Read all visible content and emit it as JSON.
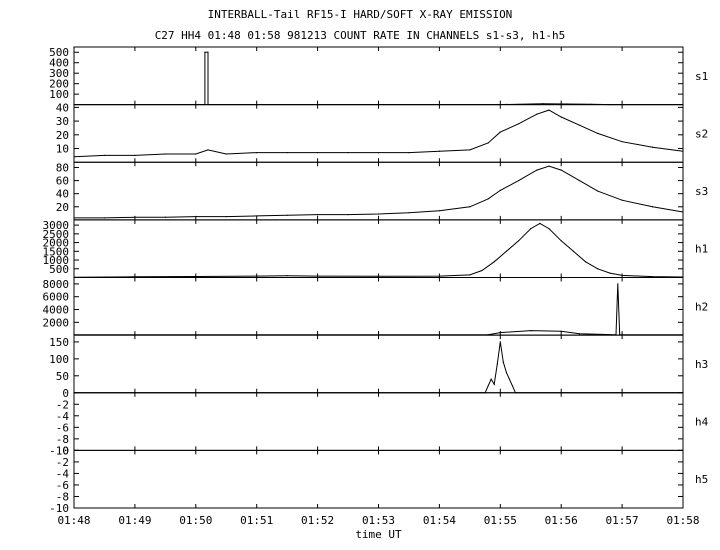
{
  "header": {
    "title": "INTERBALL-Tail RF15-I HARD/SOFT X-RAY EMISSION",
    "subtitle": "C27 HH4 01:48 01:58 981213  COUNT RATE IN CHANNELS s1-s3, h1-h5"
  },
  "chart_data": {
    "type": "line",
    "title": "INTERBALL-Tail RF15-I HARD/SOFT X-RAY EMISSION",
    "subtitle": "C27 HH4 01:48 01:58 981213  COUNT RATE IN CHANNELS s1-s3, h1-h5",
    "xlabel": "time UT",
    "x_range_minutes": [
      108,
      118
    ],
    "x_ticks": [
      "01:48",
      "01:49",
      "01:50",
      "01:51",
      "01:52",
      "01:53",
      "01:54",
      "01:55",
      "01:56",
      "01:57",
      "01:58"
    ],
    "panels": [
      {
        "name": "s1",
        "ylim": [
          0,
          550
        ],
        "yticks": [
          100,
          200,
          300,
          400,
          500
        ],
        "series": [
          {
            "x": 108.0,
            "y": 0
          },
          {
            "x": 110.15,
            "y": 0
          },
          {
            "x": 110.15,
            "y": 500
          },
          {
            "x": 110.2,
            "y": 500
          },
          {
            "x": 110.2,
            "y": 0
          },
          {
            "x": 114.95,
            "y": 0
          },
          {
            "x": 115.3,
            "y": 3
          },
          {
            "x": 115.7,
            "y": 8
          },
          {
            "x": 116.1,
            "y": 6
          },
          {
            "x": 116.5,
            "y": 3
          },
          {
            "x": 116.8,
            "y": 0
          },
          {
            "x": 118.0,
            "y": 0
          }
        ]
      },
      {
        "name": "s2",
        "ylim": [
          0,
          42
        ],
        "yticks": [
          10,
          20,
          30,
          40
        ],
        "series": [
          {
            "x": 108.0,
            "y": 4
          },
          {
            "x": 108.5,
            "y": 5
          },
          {
            "x": 109.0,
            "y": 5
          },
          {
            "x": 109.5,
            "y": 6
          },
          {
            "x": 110.0,
            "y": 6
          },
          {
            "x": 110.2,
            "y": 9
          },
          {
            "x": 110.5,
            "y": 6
          },
          {
            "x": 111.0,
            "y": 7
          },
          {
            "x": 111.5,
            "y": 7
          },
          {
            "x": 112.0,
            "y": 7
          },
          {
            "x": 112.5,
            "y": 7
          },
          {
            "x": 113.0,
            "y": 7
          },
          {
            "x": 113.5,
            "y": 7
          },
          {
            "x": 114.0,
            "y": 8
          },
          {
            "x": 114.5,
            "y": 9
          },
          {
            "x": 114.8,
            "y": 14
          },
          {
            "x": 115.0,
            "y": 22
          },
          {
            "x": 115.3,
            "y": 28
          },
          {
            "x": 115.6,
            "y": 35
          },
          {
            "x": 115.8,
            "y": 38
          },
          {
            "x": 116.0,
            "y": 33
          },
          {
            "x": 116.3,
            "y": 27
          },
          {
            "x": 116.6,
            "y": 21
          },
          {
            "x": 117.0,
            "y": 15
          },
          {
            "x": 117.5,
            "y": 11
          },
          {
            "x": 118.0,
            "y": 8
          }
        ]
      },
      {
        "name": "s3",
        "ylim": [
          0,
          88
        ],
        "yticks": [
          20,
          40,
          60,
          80
        ],
        "series": [
          {
            "x": 108.0,
            "y": 3
          },
          {
            "x": 108.5,
            "y": 3
          },
          {
            "x": 109.0,
            "y": 4
          },
          {
            "x": 109.5,
            "y": 4
          },
          {
            "x": 110.0,
            "y": 5
          },
          {
            "x": 110.5,
            "y": 5
          },
          {
            "x": 111.0,
            "y": 6
          },
          {
            "x": 111.5,
            "y": 7
          },
          {
            "x": 112.0,
            "y": 8
          },
          {
            "x": 112.5,
            "y": 8
          },
          {
            "x": 113.0,
            "y": 9
          },
          {
            "x": 113.5,
            "y": 11
          },
          {
            "x": 114.0,
            "y": 14
          },
          {
            "x": 114.5,
            "y": 20
          },
          {
            "x": 114.8,
            "y": 32
          },
          {
            "x": 115.0,
            "y": 45
          },
          {
            "x": 115.3,
            "y": 60
          },
          {
            "x": 115.6,
            "y": 76
          },
          {
            "x": 115.8,
            "y": 82
          },
          {
            "x": 116.0,
            "y": 76
          },
          {
            "x": 116.3,
            "y": 60
          },
          {
            "x": 116.6,
            "y": 44
          },
          {
            "x": 117.0,
            "y": 30
          },
          {
            "x": 117.5,
            "y": 20
          },
          {
            "x": 118.0,
            "y": 12
          }
        ]
      },
      {
        "name": "h1",
        "ylim": [
          0,
          3300
        ],
        "yticks": [
          500,
          1000,
          1500,
          2000,
          2500,
          3000
        ],
        "series": [
          {
            "x": 108.0,
            "y": 20
          },
          {
            "x": 109.0,
            "y": 40
          },
          {
            "x": 110.0,
            "y": 60
          },
          {
            "x": 111.0,
            "y": 80
          },
          {
            "x": 111.5,
            "y": 100
          },
          {
            "x": 112.0,
            "y": 80
          },
          {
            "x": 113.0,
            "y": 70
          },
          {
            "x": 114.0,
            "y": 80
          },
          {
            "x": 114.5,
            "y": 150
          },
          {
            "x": 114.7,
            "y": 400
          },
          {
            "x": 114.9,
            "y": 900
          },
          {
            "x": 115.1,
            "y": 1500
          },
          {
            "x": 115.3,
            "y": 2100
          },
          {
            "x": 115.5,
            "y": 2800
          },
          {
            "x": 115.65,
            "y": 3100
          },
          {
            "x": 115.8,
            "y": 2800
          },
          {
            "x": 116.0,
            "y": 2100
          },
          {
            "x": 116.2,
            "y": 1500
          },
          {
            "x": 116.4,
            "y": 900
          },
          {
            "x": 116.6,
            "y": 500
          },
          {
            "x": 116.8,
            "y": 250
          },
          {
            "x": 117.0,
            "y": 120
          },
          {
            "x": 117.5,
            "y": 50
          },
          {
            "x": 118.0,
            "y": 30
          }
        ]
      },
      {
        "name": "h2",
        "ylim": [
          0,
          9000
        ],
        "yticks": [
          2000,
          4000,
          6000,
          8000
        ],
        "series": [
          {
            "x": 108.0,
            "y": 50
          },
          {
            "x": 114.8,
            "y": 60
          },
          {
            "x": 115.0,
            "y": 400
          },
          {
            "x": 115.5,
            "y": 700
          },
          {
            "x": 116.0,
            "y": 600
          },
          {
            "x": 116.3,
            "y": 200
          },
          {
            "x": 116.9,
            "y": 60
          },
          {
            "x": 116.93,
            "y": 8000
          },
          {
            "x": 116.96,
            "y": 60
          },
          {
            "x": 118.0,
            "y": 50
          }
        ]
      },
      {
        "name": "h3",
        "ylim": [
          0,
          170
        ],
        "yticks": [
          50,
          100,
          150
        ],
        "series": [
          {
            "x": 108.0,
            "y": 0
          },
          {
            "x": 114.75,
            "y": 0
          },
          {
            "x": 114.8,
            "y": 20
          },
          {
            "x": 114.85,
            "y": 40
          },
          {
            "x": 114.9,
            "y": 25
          },
          {
            "x": 114.95,
            "y": 85
          },
          {
            "x": 115.0,
            "y": 150
          },
          {
            "x": 115.05,
            "y": 90
          },
          {
            "x": 115.1,
            "y": 60
          },
          {
            "x": 115.15,
            "y": 40
          },
          {
            "x": 115.2,
            "y": 20
          },
          {
            "x": 115.25,
            "y": 0
          },
          {
            "x": 118.0,
            "y": 0
          }
        ]
      },
      {
        "name": "h4",
        "ylim": [
          -10,
          0
        ],
        "yticks": [
          -10,
          -8,
          -6,
          -4,
          -2,
          0
        ],
        "series": []
      },
      {
        "name": "h5",
        "ylim": [
          -10,
          0
        ],
        "yticks": [
          -10,
          -8,
          -6,
          -4,
          -2,
          0
        ],
        "series": []
      }
    ]
  }
}
